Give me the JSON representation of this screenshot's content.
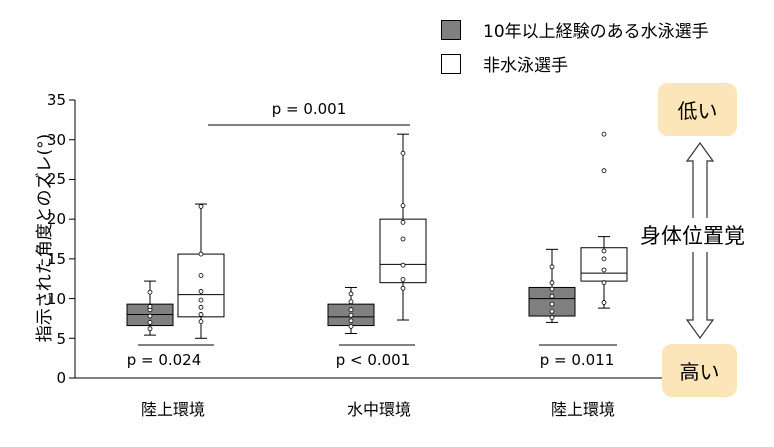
{
  "colors": {
    "swimmer": "#808080",
    "nonswimmer": "#ffffff",
    "badge": "#fbe5b9"
  },
  "legend": [
    {
      "label": "10年以上経験のある水泳選手",
      "color": "#808080"
    },
    {
      "label": "非水泳選手",
      "color": "#ffffff"
    }
  ],
  "yaxis_label": "指示された角度とのズレ(°)",
  "badges": {
    "low": "低い",
    "high": "高い"
  },
  "sense_label": "身体位置覚",
  "chart_data": {
    "type": "box",
    "ylim": [
      0,
      35
    ],
    "yticks": [
      0,
      5,
      10,
      15,
      20,
      25,
      30,
      35
    ],
    "categories": [
      "陸上環境",
      "水中環境",
      "陸上環境"
    ],
    "series": [
      {
        "name": "10年以上経験のある水泳選手",
        "boxes": [
          {
            "min": 5.4,
            "q1": 6.6,
            "median": 8.0,
            "q3": 9.3,
            "max": 12.2,
            "points": [
              6.2,
              7.0,
              7.8,
              8.6,
              9.0,
              10.8
            ]
          },
          {
            "min": 5.6,
            "q1": 6.6,
            "median": 7.7,
            "q3": 9.3,
            "max": 11.4,
            "points": [
              6.5,
              7.2,
              7.9,
              8.6,
              9.6,
              10.6
            ]
          },
          {
            "min": 7.0,
            "q1": 7.8,
            "median": 10.0,
            "q3": 11.4,
            "max": 16.2,
            "points": [
              7.6,
              8.4,
              9.3,
              10.3,
              11.2,
              12.0,
              14.0
            ]
          }
        ]
      },
      {
        "name": "非水泳選手",
        "boxes": [
          {
            "min": 5.0,
            "q1": 7.7,
            "median": 10.5,
            "q3": 15.6,
            "max": 21.9,
            "points": [
              7.1,
              8.0,
              8.9,
              9.8,
              10.9,
              12.9,
              15.6,
              21.6
            ]
          },
          {
            "min": 7.3,
            "q1": 12.0,
            "median": 14.3,
            "q3": 20.0,
            "max": 30.7,
            "points": [
              11.3,
              12.4,
              14.2,
              17.5,
              19.6,
              21.7,
              28.3
            ]
          },
          {
            "min": 8.8,
            "q1": 12.2,
            "median": 13.2,
            "q3": 16.4,
            "max": 17.8,
            "points": [
              9.5,
              12.0,
              13.6,
              15.0,
              16.0,
              26.1,
              30.7
            ]
          }
        ]
      }
    ],
    "pvalues": [
      "p = 0.024",
      "p < 0.001",
      "p = 0.011"
    ],
    "bracket_label": "p = 0.001"
  }
}
